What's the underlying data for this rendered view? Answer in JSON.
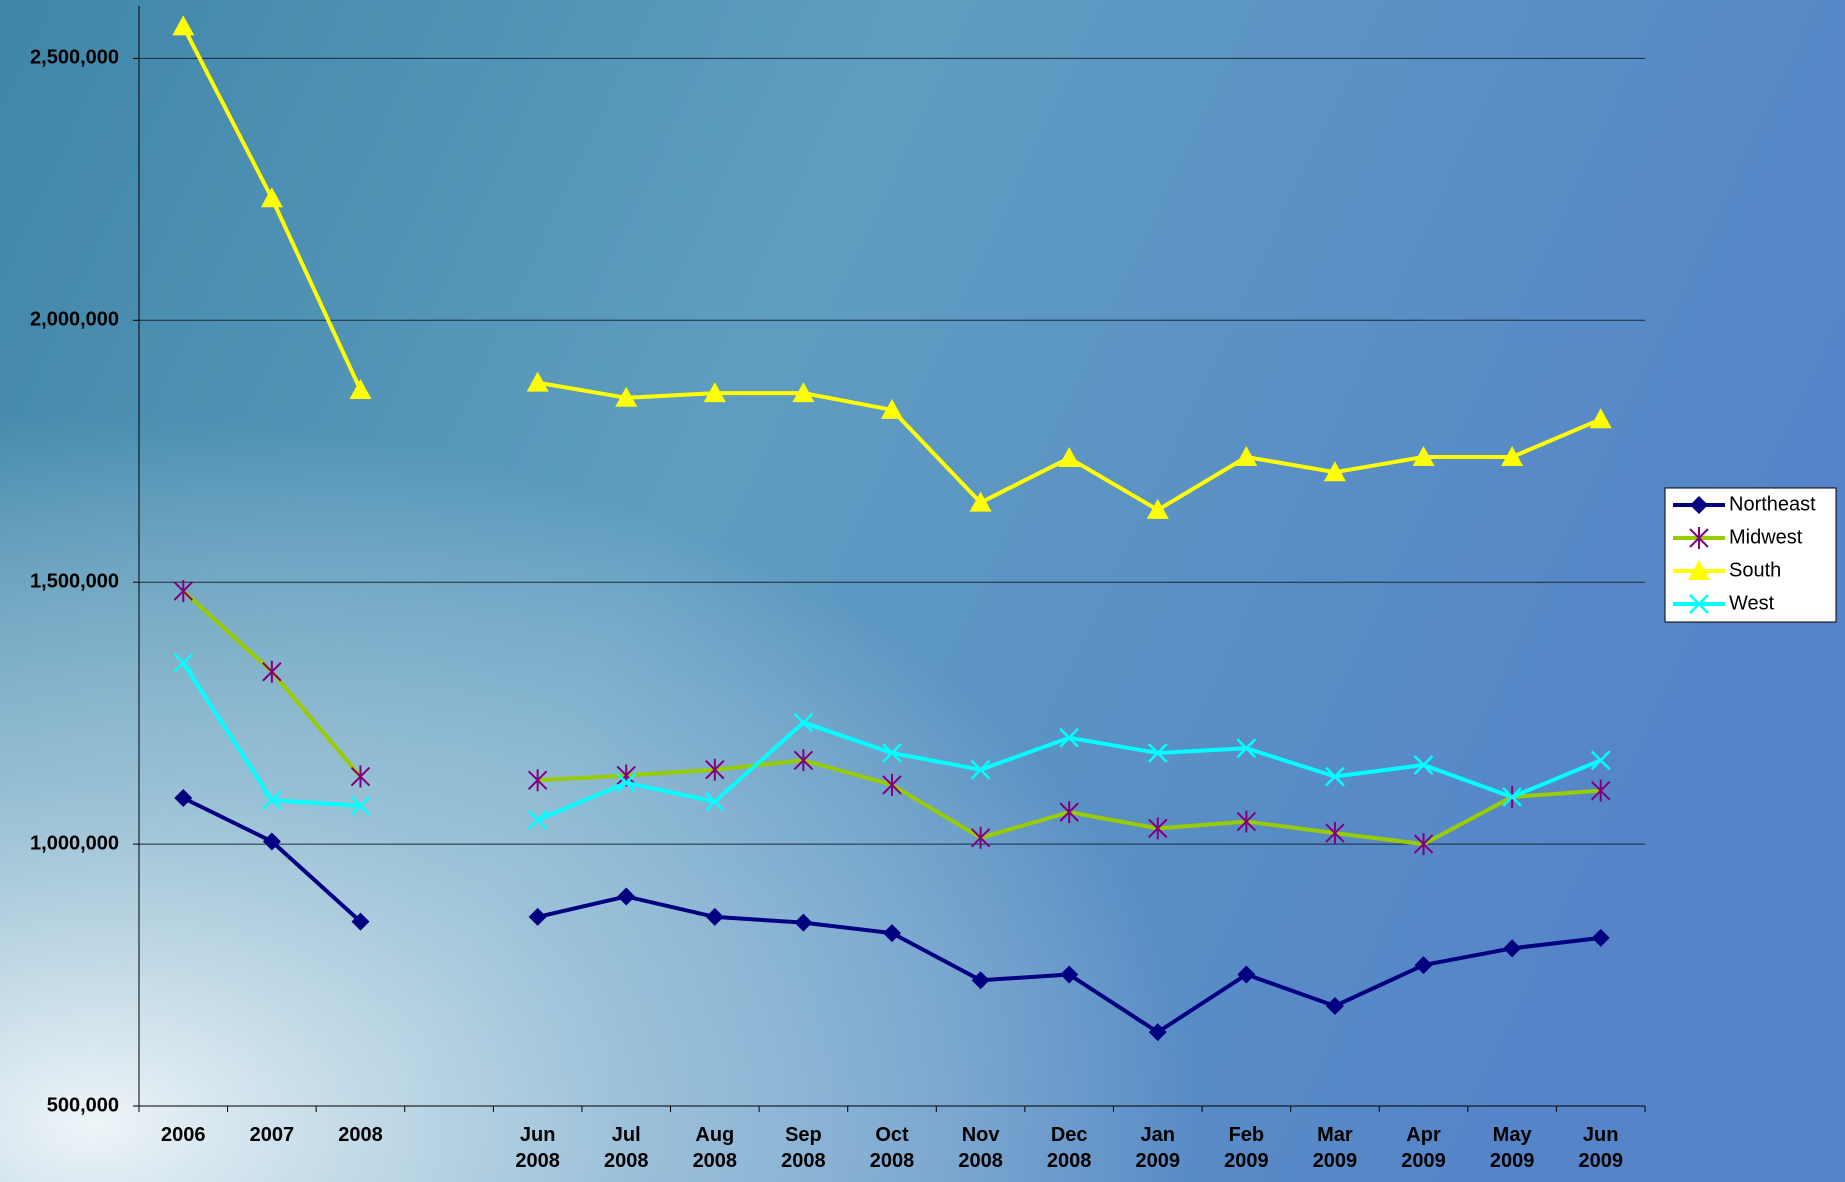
{
  "chart_data": {
    "type": "line",
    "categories": [
      "2006",
      "2007",
      "2008",
      null,
      "Jun 2008",
      "Jul 2008",
      "Aug 2008",
      "Sep 2008",
      "Oct 2008",
      "Nov 2008",
      "Dec 2008",
      "Jan 2009",
      "Feb 2009",
      "Mar 2009",
      "Apr 2009",
      "May 2009",
      "Jun 2009"
    ],
    "series": [
      {
        "name": "Northeast",
        "color": "#000080",
        "marker": "diamond",
        "marker_color": "#000080",
        "values": [
          1088000,
          1005000,
          852000,
          null,
          861000,
          900000,
          861000,
          850000,
          830000,
          740000,
          751000,
          641000,
          751000,
          691000,
          769000,
          801000,
          821000
        ]
      },
      {
        "name": "Midwest",
        "color": "#99cc00",
        "marker": "asterisk",
        "marker_color": "#800080",
        "values": [
          1483000,
          1329000,
          1129000,
          null,
          1122000,
          1131000,
          1142000,
          1160000,
          1113000,
          1012000,
          1061000,
          1030000,
          1043000,
          1021000,
          1000000,
          1090000,
          1102000
        ]
      },
      {
        "name": "South",
        "color": "#ffff00",
        "marker": "triangle",
        "marker_color": "#ffff00",
        "values": [
          2561000,
          2233000,
          1867000,
          null,
          1881000,
          1852000,
          1861000,
          1861000,
          1829000,
          1652000,
          1737000,
          1638000,
          1739000,
          1710000,
          1739000,
          1739000,
          1811000
        ]
      },
      {
        "name": "West",
        "color": "#00ffff",
        "marker": "x",
        "marker_color": "#00ffff",
        "values": [
          1346000,
          1084000,
          1073000,
          null,
          1046000,
          1117000,
          1081000,
          1232000,
          1174000,
          1142000,
          1203000,
          1174000,
          1183000,
          1129000,
          1151000,
          1090000,
          1160000
        ]
      }
    ],
    "ylim": [
      500000,
      2600000
    ],
    "yticks": [
      {
        "value": 500000,
        "label": "500,000"
      },
      {
        "value": 1000000,
        "label": "1,000,000"
      },
      {
        "value": 1500000,
        "label": "1,500,000"
      },
      {
        "value": 2000000,
        "label": "2,000,000"
      },
      {
        "value": 2500000,
        "label": "2,500,000"
      }
    ],
    "grid": true,
    "legend": "right"
  }
}
